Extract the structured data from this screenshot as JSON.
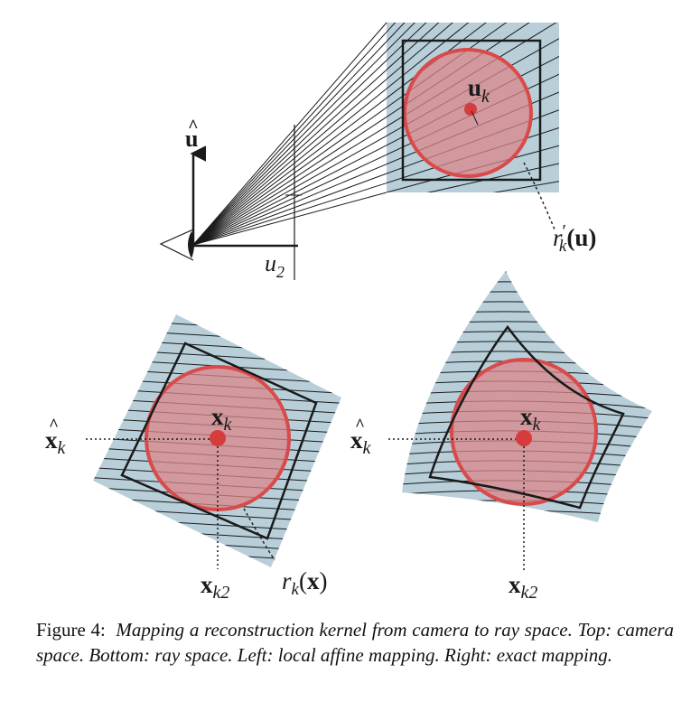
{
  "top": {
    "u_hat": "u",
    "u_hat_accent": "^",
    "u2_base": "u",
    "u2_sub": "2",
    "uk_base": "u",
    "uk_sub": "k",
    "rk_prime_base": "r",
    "rk_prime_mark": "′",
    "rk_prime_sub": "k",
    "rk_prime_arg": "(u)"
  },
  "left": {
    "xhat_base": "x",
    "xhat_accent": "^",
    "xhat_sub": "k",
    "xk_base": "x",
    "xk_sub": "k",
    "xk2_base": "x",
    "xk2_sub": "k2",
    "rk_base": "r",
    "rk_sub": "k",
    "rk_open": "(",
    "rk_x": "x",
    "rk_close": ")"
  },
  "right": {
    "xhat_base": "x",
    "xhat_accent": "^",
    "xhat_sub": "k",
    "xk_base": "x",
    "xk_sub": "k",
    "xk2_base": "x",
    "xk2_sub": "k2"
  },
  "colors": {
    "panel": "#b8cfd9",
    "kernel_fill": "#d9868a",
    "kernel_stroke": "#d94a4a",
    "center_dot": "#d63c3c",
    "lines": "#1a1a1a"
  },
  "caption": {
    "label": "Figure 4:",
    "text": "Mapping a reconstruction kernel from camera to ray space. Top: camera space. Bottom: ray space. Left: local affine mapping. Right: exact mapping."
  }
}
